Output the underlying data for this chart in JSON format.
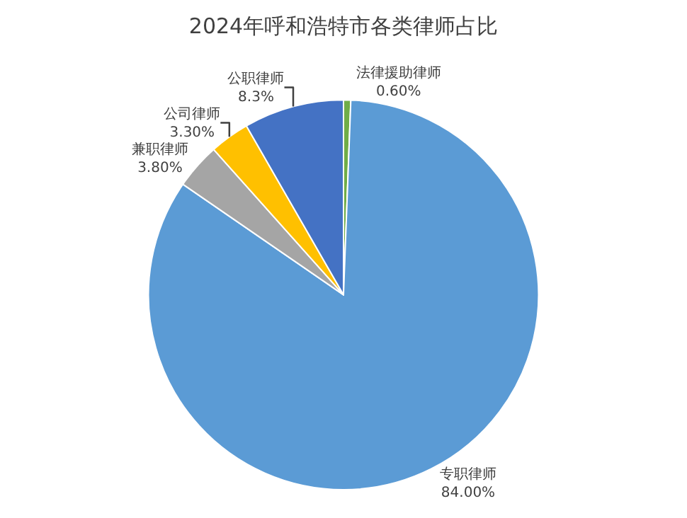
{
  "chart_data": {
    "type": "pie",
    "title": "2024年呼和浩特市各类律师占比",
    "categories": [
      "法律援助律师",
      "专职律师",
      "兼职律师",
      "公司律师",
      "公职律师"
    ],
    "values": [
      0.6,
      84,
      3.8,
      3.3,
      8.3
    ],
    "colors": [
      "#70ad47",
      "#5b9bd5",
      "#a5a5a5",
      "#ffc000",
      "#4472c4"
    ],
    "value_labels": [
      "0.60%",
      "84.00%",
      "3.80%",
      "3.30%",
      "8.3%"
    ],
    "legend": false
  }
}
